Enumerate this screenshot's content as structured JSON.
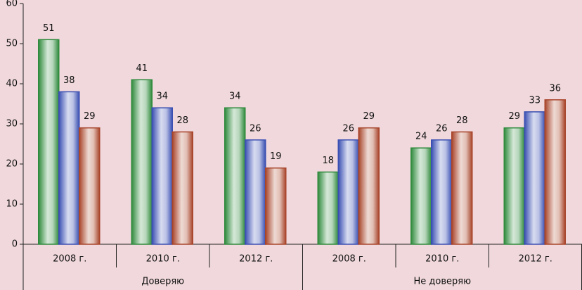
{
  "chart_data": {
    "type": "bar",
    "groups": [
      {
        "label": "Доверяю",
        "categories": [
          "2008 г.",
          "2010 г.",
          "2012 г."
        ]
      },
      {
        "label": "Не доверяю",
        "categories": [
          "2008 г.",
          "2010 г.",
          "2012 г."
        ]
      }
    ],
    "series": [
      {
        "color": "#2f8a3c",
        "values": [
          51,
          41,
          34,
          18,
          24,
          29
        ]
      },
      {
        "color": "#3a4fb2",
        "values": [
          38,
          34,
          26,
          26,
          26,
          33
        ]
      },
      {
        "color": "#a8442a",
        "values": [
          29,
          28,
          19,
          29,
          28,
          36
        ]
      }
    ],
    "ylim": [
      0,
      60
    ],
    "yticks": [
      0,
      10,
      20,
      30,
      40,
      50,
      60
    ],
    "grid": false
  }
}
